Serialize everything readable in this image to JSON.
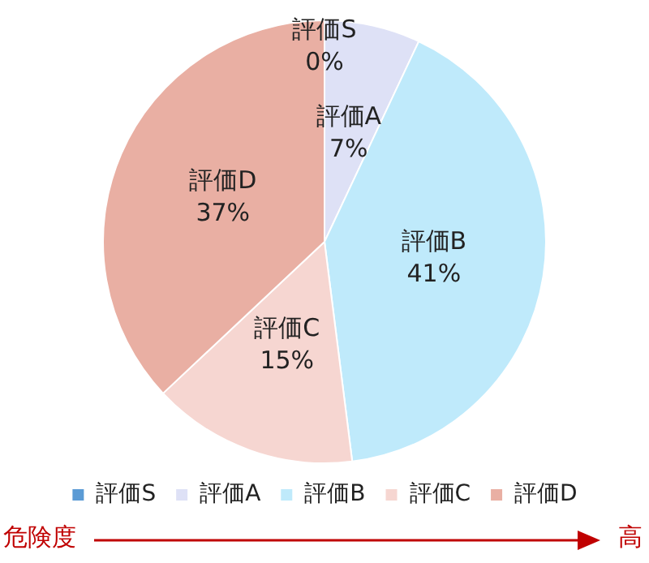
{
  "chart_data": {
    "type": "pie",
    "categories": [
      "評価S",
      "評価A",
      "評価B",
      "評価C",
      "評価D"
    ],
    "values": [
      0,
      7,
      41,
      15,
      37
    ],
    "value_labels": [
      "0%",
      "7%",
      "41%",
      "15%",
      "37%"
    ],
    "colors": [
      "#5b9bd5",
      "#dee1f6",
      "#bfeafb",
      "#f6d6d1",
      "#e9afa3"
    ],
    "legend": "bottom",
    "annotations": [
      "危険度",
      "高"
    ]
  }
}
